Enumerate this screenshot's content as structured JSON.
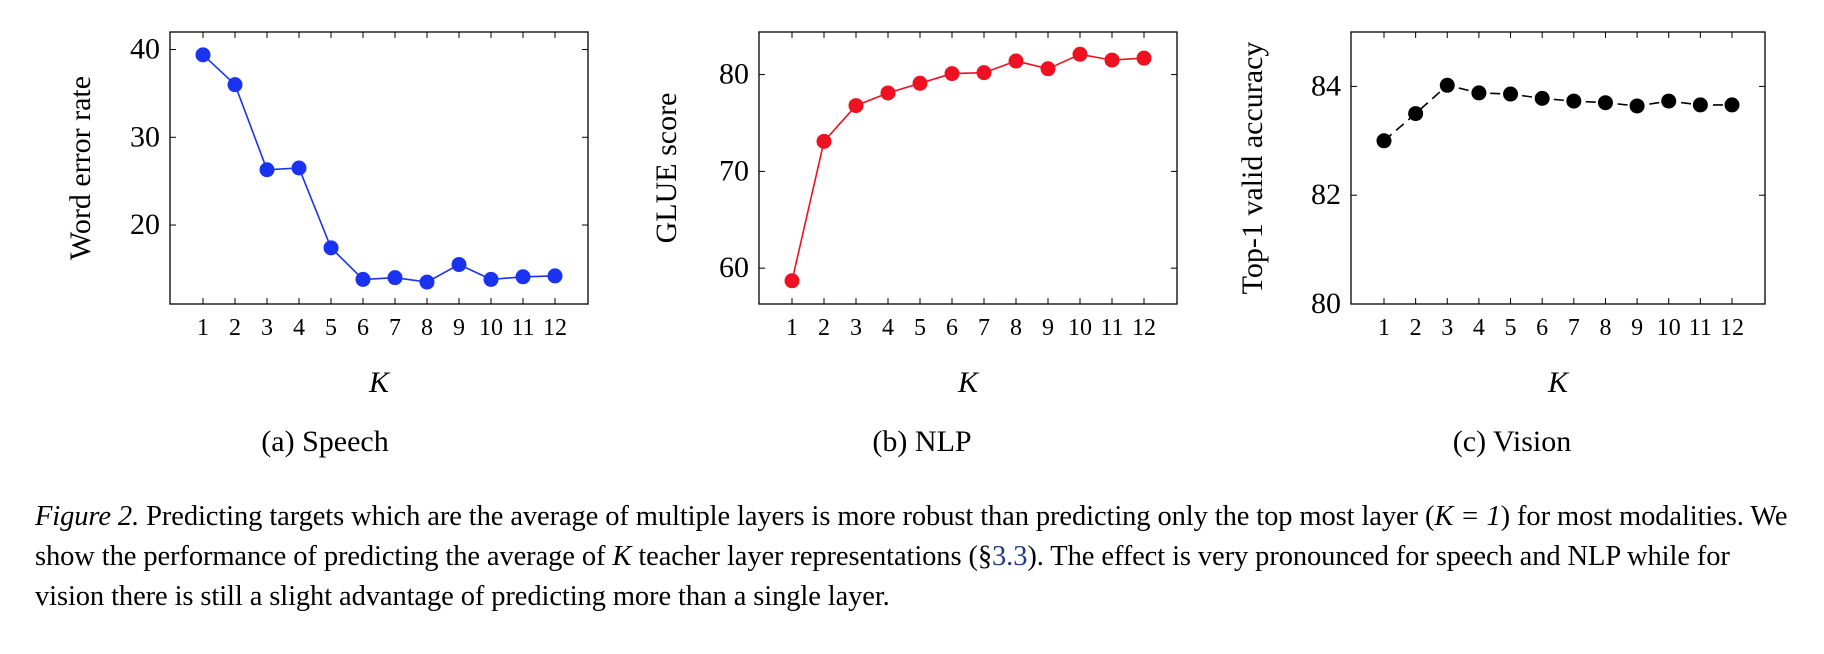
{
  "chart_data": [
    {
      "type": "line",
      "sub_caption": "(a) Speech",
      "xlabel": "K",
      "ylabel": "Word error rate",
      "x": [
        1,
        2,
        3,
        4,
        5,
        6,
        7,
        8,
        9,
        10,
        11,
        12
      ],
      "xticks": [
        "1",
        "2",
        "3",
        "4",
        "5",
        "6",
        "7",
        "8",
        "9",
        "10",
        "11",
        "12"
      ],
      "series": [
        {
          "values": [
            39.4,
            36.0,
            26.3,
            26.5,
            17.4,
            13.8,
            14.0,
            13.5,
            15.5,
            13.8,
            14.1,
            14.2
          ],
          "color": "#1a33f0",
          "line_style": "solid"
        }
      ],
      "ylim": [
        11,
        42
      ],
      "yticks": [
        20,
        30,
        40
      ],
      "grid": false,
      "legend": "none"
    },
    {
      "type": "line",
      "sub_caption": "(b) NLP",
      "xlabel": "K",
      "ylabel": "GLUE score",
      "x": [
        1,
        2,
        3,
        4,
        5,
        6,
        7,
        8,
        9,
        10,
        11,
        12
      ],
      "xticks": [
        "1",
        "2",
        "3",
        "4",
        "5",
        "6",
        "7",
        "8",
        "9",
        "10",
        "11",
        "12"
      ],
      "series": [
        {
          "values": [
            58.7,
            73.1,
            76.8,
            78.1,
            79.1,
            80.1,
            80.2,
            81.4,
            80.6,
            82.1,
            81.5,
            81.7
          ],
          "color": "#ee1122",
          "line_style": "solid"
        }
      ],
      "ylim": [
        56.3,
        84.4
      ],
      "yticks": [
        60,
        70,
        80
      ],
      "grid": false,
      "legend": "none"
    },
    {
      "type": "line",
      "sub_caption": "(c) Vision",
      "xlabel": "K",
      "ylabel": "Top-1 valid accuracy",
      "x": [
        1,
        2,
        3,
        4,
        5,
        6,
        7,
        8,
        9,
        10,
        11,
        12
      ],
      "xticks": [
        "1",
        "2",
        "3",
        "4",
        "5",
        "6",
        "7",
        "8",
        "9",
        "10",
        "11",
        "12"
      ],
      "series": [
        {
          "values": [
            83.0,
            83.5,
            84.02,
            83.88,
            83.86,
            83.78,
            83.73,
            83.7,
            83.64,
            83.73,
            83.66,
            83.66
          ],
          "color": "#000000",
          "line_style": "dashed"
        }
      ],
      "ylim": [
        80,
        85
      ],
      "yticks": [
        80,
        82,
        84
      ],
      "grid": false,
      "legend": "none"
    }
  ],
  "caption": {
    "label": "Figure 2.",
    "part1": " Predicting targets which are the average of multiple layers is more robust than predicting only the top most layer (",
    "math1": "K = 1",
    "part2": ") for most modalities. We show the performance of predicting the average of ",
    "math2": "K",
    "part3": " teacher layer representations (§",
    "ref": "3.3",
    "part4": "). The effect is very pronounced for speech and NLP while for vision there is still a slight advantage of predicting more than a single layer."
  }
}
